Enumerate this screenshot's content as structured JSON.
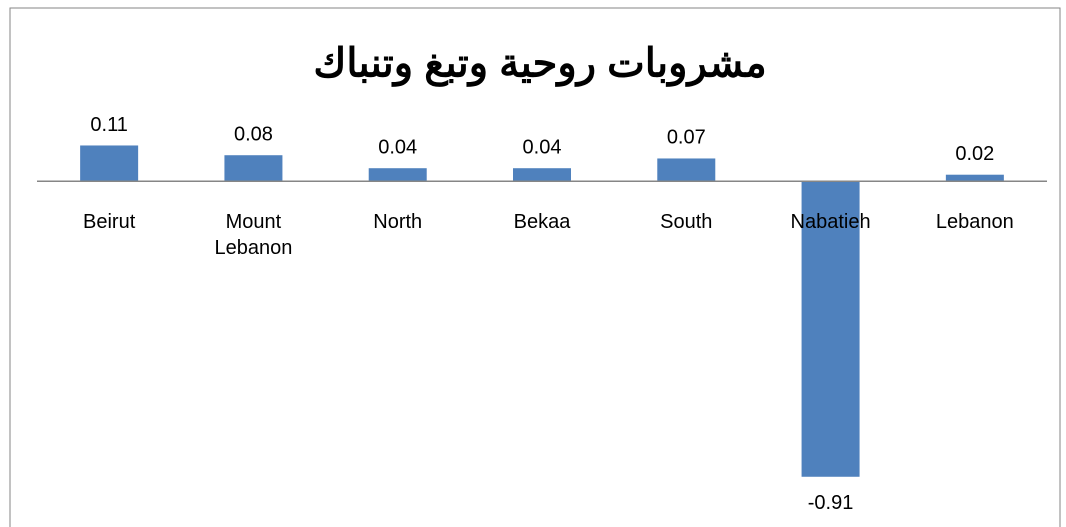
{
  "chart_data": {
    "type": "bar",
    "title": "مشروبات روحية وتبغ وتنباك",
    "categories": [
      "Beirut",
      "Mount Lebanon",
      "North",
      "Bekaa",
      "South",
      "Nabatieh",
      "Lebanon"
    ],
    "values": [
      0.11,
      0.08,
      0.04,
      0.04,
      0.07,
      -0.91,
      0.02
    ],
    "color": "#4f81bd",
    "ylim": [
      -1,
      0.25
    ]
  }
}
